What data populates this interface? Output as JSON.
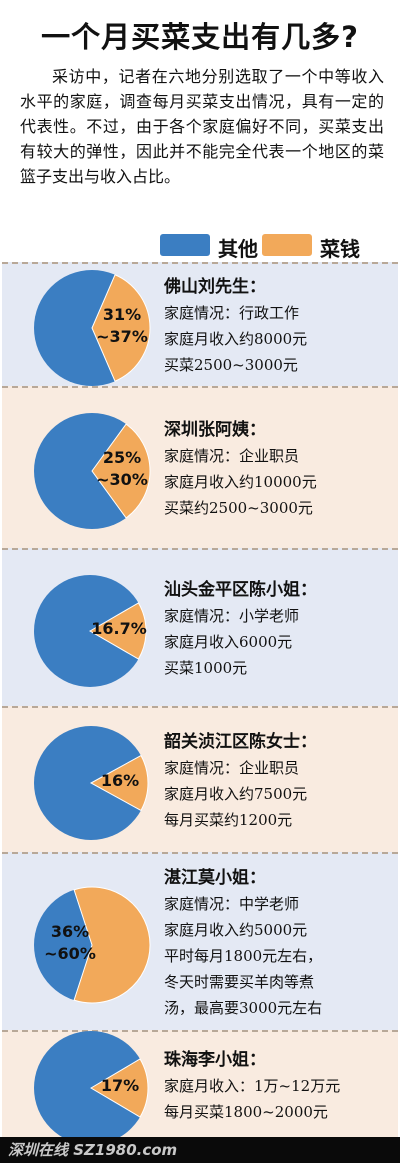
{
  "title": "一个月买菜支出有几多?",
  "intro": "采访中，记者在六地分别选取了一个中等收入水平的家庭，调查每月买菜支出情况，具有一定的代表性。不过，由于各个家庭偏好不同，买菜支出有较大的弹性，因此并不能完全代表一个地区的菜篮子支出与收入占比。",
  "colors": {
    "other": "#3b7ec2",
    "veg": "#f2a95a"
  },
  "legend": {
    "other_label": "其他",
    "veg_label": "菜钱"
  },
  "footer": {
    "brand": "深圳在线 SZ1980.com"
  },
  "chart_data": {
    "type": "pie",
    "title": "一个月买菜支出有几多?",
    "legend": [
      "其他",
      "菜钱"
    ],
    "charts": [
      {
        "name": "佛山刘先生：",
        "pct_label": [
          "31%",
          "~37%"
        ],
        "veg_share": 0.37,
        "lines": [
          "家庭情况：行政工作",
          "家庭月收入约8000元",
          "买菜2500~3000元"
        ]
      },
      {
        "name": "深圳张阿姨：",
        "pct_label": [
          "25%",
          "~30%"
        ],
        "veg_share": 0.3,
        "lines": [
          "家庭情况：企业职员",
          "家庭月收入约10000元",
          "买菜约2500~3000元"
        ]
      },
      {
        "name": "汕头金平区陈小姐：",
        "pct_label": [
          "16.7%"
        ],
        "veg_share": 0.167,
        "lines": [
          "家庭情况：小学老师",
          "家庭月收入6000元",
          "买菜1000元"
        ]
      },
      {
        "name": "韶关浈江区陈女士：",
        "pct_label": [
          "16%"
        ],
        "veg_share": 0.16,
        "lines": [
          "家庭情况：企业职员",
          "家庭月收入约7500元",
          "每月买菜约1200元"
        ]
      },
      {
        "name": "湛江莫小姐：",
        "pct_label": [
          "36%",
          "~60%"
        ],
        "veg_share": 0.6,
        "lines": [
          "家庭情况：中学老师",
          "家庭月收入约5000元",
          "平时每月1800元左右，",
          "冬天时需要买羊肉等煮",
          "汤，最高要3000元左右"
        ]
      },
      {
        "name": "珠海李小姐：",
        "pct_label": [
          "17%"
        ],
        "veg_share": 0.17,
        "lines": [
          "家庭月收入：1万~12万元",
          "每月买菜1800~2000元"
        ]
      }
    ]
  }
}
